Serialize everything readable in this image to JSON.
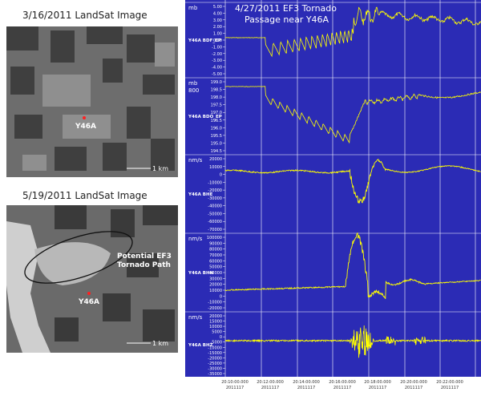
{
  "image1": {
    "title": "3/16/2011 LandSat Image",
    "station": "Y46A",
    "scale": "1 km"
  },
  "image2": {
    "title": "5/19/2011 LandSat Image",
    "station": "Y46A",
    "scale": "1 km",
    "annotation_line1": "Potential EF3",
    "annotation_line2": "Tornado Path"
  },
  "seismo": {
    "title_line1": "4/27/2011 EF3 Tornado",
    "title_line2": "Passage near Y46A",
    "colors": {
      "background": "#2b2bb5",
      "trace": "#ffff00",
      "grid": "#ffffff"
    },
    "panels": [
      {
        "unit": "mb",
        "name": "Y46A BDF_EP",
        "ticks": [
          "5.00",
          "4.00",
          "3.00",
          "2.00",
          "1.00",
          "0.00",
          "-1.00",
          "-2.00",
          "-3.00",
          "-4.00",
          "-5.00"
        ]
      },
      {
        "unit": "mb",
        "unit2": "800",
        "name": "Y46A BDO_EP",
        "ticks": [
          "199.0",
          "198.5",
          "198.0",
          "197.5",
          "197.0",
          "196.5",
          "196.0",
          "195.5",
          "195.0",
          "194.5"
        ]
      },
      {
        "unit": "nm/s",
        "name": "Y46A BHE",
        "ticks": [
          "20000",
          "10000",
          "0",
          "-10000",
          "-20000",
          "-30000",
          "-40000",
          "-50000",
          "-60000",
          "-70000"
        ]
      },
      {
        "unit": "nm/s",
        "name": "Y46A BHN",
        "ticks": [
          "100000",
          "90000",
          "80000",
          "70000",
          "60000",
          "50000",
          "40000",
          "30000",
          "20000",
          "10000",
          "0",
          "-10000",
          "-20000"
        ]
      },
      {
        "unit": "nm/s",
        "name": "Y46A BHZ",
        "ticks": [
          "20000",
          "15000",
          "10000",
          "5000",
          "0",
          "-5000",
          "-10000",
          "-15000",
          "-20000",
          "-25000",
          "-30000",
          "-35000"
        ]
      }
    ],
    "time_labels": [
      {
        "t": "20:10:00.000",
        "d": "2011117"
      },
      {
        "t": "20:12:00.000",
        "d": "2011117"
      },
      {
        "t": "20:14:00.000",
        "d": "2011117"
      },
      {
        "t": "20:16:00.000",
        "d": "2011117"
      },
      {
        "t": "20:18:00.000",
        "d": "2011117"
      },
      {
        "t": "20:20:00.000",
        "d": "2011117"
      },
      {
        "t": "20:22:00.000",
        "d": "2011117"
      }
    ]
  }
}
